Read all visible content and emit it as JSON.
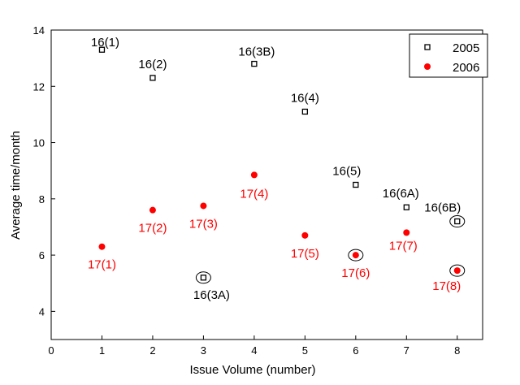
{
  "chart_data": {
    "type": "scatter",
    "title": "",
    "xlabel": "Issue Volume (number)",
    "ylabel": "Average time/month",
    "xlim": [
      0,
      8.5
    ],
    "ylim": [
      3,
      14
    ],
    "xticks": [
      "0",
      "1",
      "2",
      "3",
      "4",
      "5",
      "6",
      "7",
      "8"
    ],
    "yticks": [
      "4",
      "6",
      "8",
      "10",
      "12",
      "14"
    ],
    "grid": false,
    "legend_position": "top-right",
    "series": [
      {
        "name": "2005",
        "marker": "open-square",
        "color": "#000000",
        "points": [
          {
            "x": 1,
            "y": 13.3,
            "label": "16(1)",
            "circled": false
          },
          {
            "x": 2,
            "y": 12.3,
            "label": "16(2)",
            "circled": false
          },
          {
            "x": 3,
            "y": 5.2,
            "label": "16(3A)",
            "circled": true
          },
          {
            "x": 4,
            "y": 12.8,
            "label": "16(3B)",
            "circled": false
          },
          {
            "x": 5,
            "y": 11.1,
            "label": "16(4)",
            "circled": false
          },
          {
            "x": 6,
            "y": 8.5,
            "label": "16(5)",
            "circled": false
          },
          {
            "x": 7,
            "y": 7.7,
            "label": "16(6A)",
            "circled": false
          },
          {
            "x": 8,
            "y": 7.2,
            "label": "16(6B)",
            "circled": true
          }
        ]
      },
      {
        "name": "2006",
        "marker": "filled-circle",
        "color": "#ff0000",
        "points": [
          {
            "x": 1,
            "y": 6.3,
            "label": "17(1)",
            "circled": false
          },
          {
            "x": 2,
            "y": 7.6,
            "label": "17(2)",
            "circled": false
          },
          {
            "x": 3,
            "y": 7.75,
            "label": "17(3)",
            "circled": false
          },
          {
            "x": 4,
            "y": 8.85,
            "label": "17(4)",
            "circled": false
          },
          {
            "x": 5,
            "y": 6.7,
            "label": "17(5)",
            "circled": false
          },
          {
            "x": 6,
            "y": 6.0,
            "label": "17(6)",
            "circled": true
          },
          {
            "x": 7,
            "y": 6.8,
            "label": "17(7)",
            "circled": false
          },
          {
            "x": 8,
            "y": 5.45,
            "label": "17(8)",
            "circled": true
          }
        ]
      }
    ]
  }
}
